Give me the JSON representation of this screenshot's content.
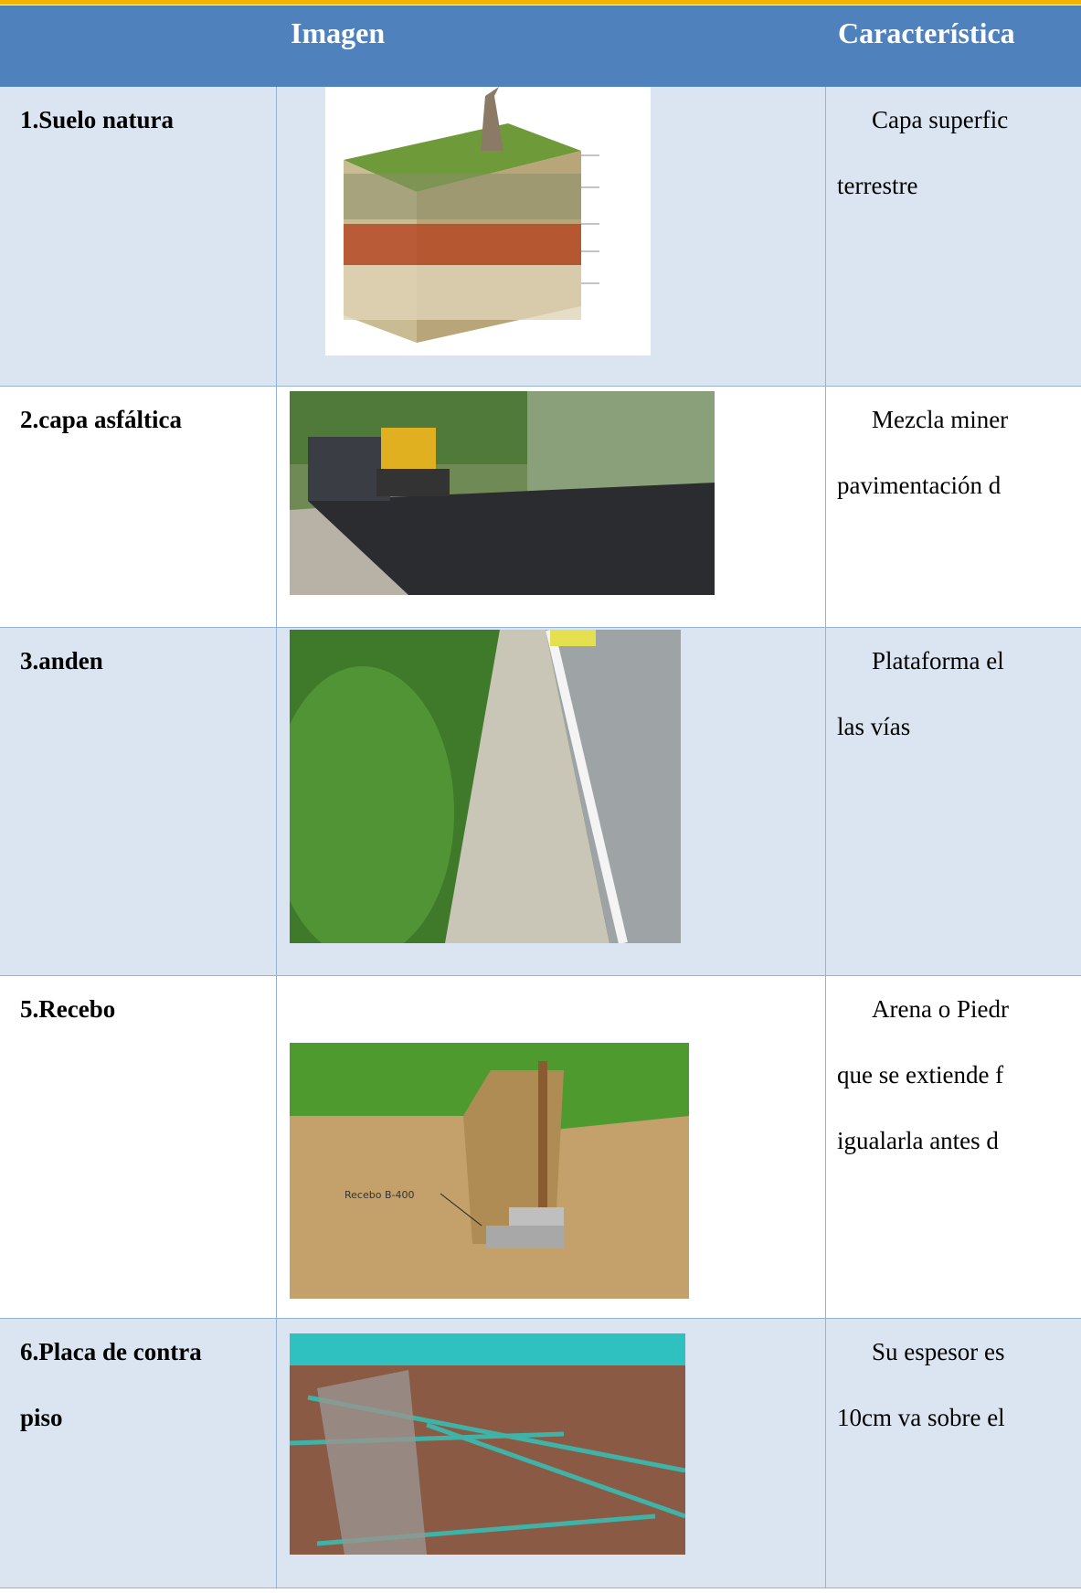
{
  "header": {
    "columns": [
      "Imagen",
      "Característica"
    ]
  },
  "table": {
    "rows": [
      {
        "label": [
          "1.Suelo natura"
        ],
        "description": [
          "Capa superfic",
          "terrestre"
        ]
      },
      {
        "label": [
          "2.capa asfáltica"
        ],
        "description": [
          "Mezcla miner",
          "pavimentación d"
        ]
      },
      {
        "label": [
          "3.anden"
        ],
        "description": [
          "Plataforma el",
          "las vías"
        ]
      },
      {
        "label": [
          "5.Recebo"
        ],
        "description": [
          "Arena o Piedr",
          "que se extiende f",
          "igualarla antes d"
        ],
        "image_label": "Recebo B-400"
      },
      {
        "label": [
          "6.Placa de contra",
          "piso"
        ],
        "description": [
          "Su espesor es",
          "10cm va sobre el"
        ]
      }
    ]
  }
}
